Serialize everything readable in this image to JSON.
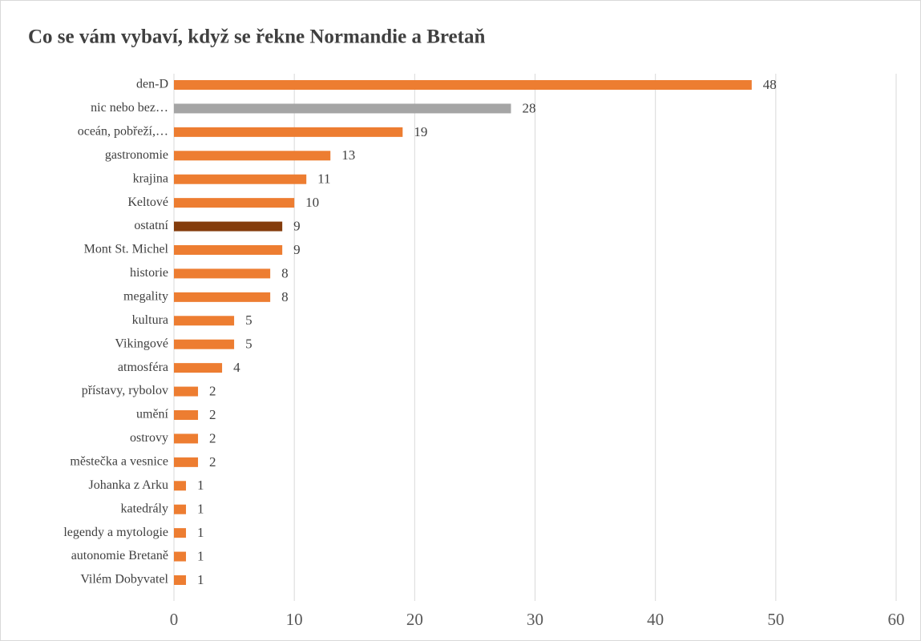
{
  "chart_data": {
    "type": "bar",
    "orientation": "horizontal",
    "title": "Co se vám vybaví, když se řekne Normandie a Bretaň",
    "categories": [
      "den-D",
      "nic nebo bez…",
      "oceán, pobřeží,…",
      "gastronomie",
      "krajina",
      "Keltové",
      "ostatní",
      "Mont St. Michel",
      "historie ",
      "megality",
      "kultura",
      "Vikingové",
      "atmosféra",
      "přístavy, rybolov",
      "umění",
      "ostrovy",
      "městečka a vesnice",
      "Johanka z Arku",
      "katedrály",
      "legendy a mytologie",
      "autonomie Bretaně",
      "Vilém Dobyvatel"
    ],
    "values": [
      48,
      28,
      19,
      13,
      11,
      10,
      9,
      9,
      8,
      8,
      5,
      5,
      4,
      2,
      2,
      2,
      2,
      1,
      1,
      1,
      1,
      1
    ],
    "colors": [
      "#ed7d31",
      "#a5a5a5",
      "#ed7d31",
      "#ed7d31",
      "#ed7d31",
      "#ed7d31",
      "#843c0c",
      "#ed7d31",
      "#ed7d31",
      "#ed7d31",
      "#ed7d31",
      "#ed7d31",
      "#ed7d31",
      "#ed7d31",
      "#ed7d31",
      "#ed7d31",
      "#ed7d31",
      "#ed7d31",
      "#ed7d31",
      "#ed7d31",
      "#ed7d31",
      "#ed7d31"
    ],
    "xlim": [
      0,
      60
    ],
    "xticks": [
      0,
      10,
      20,
      30,
      40,
      50,
      60
    ],
    "grid": true
  }
}
